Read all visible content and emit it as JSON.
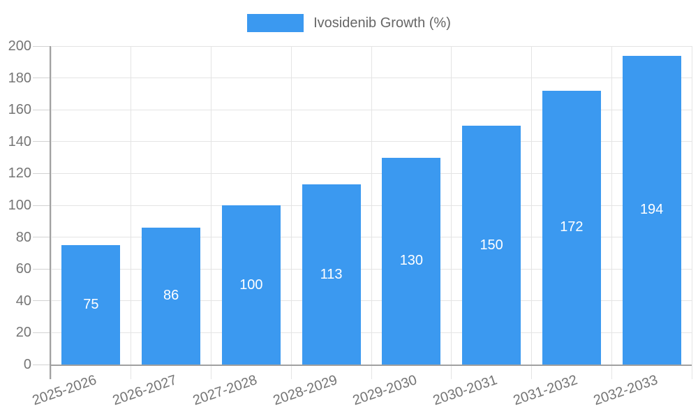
{
  "chart_data": {
    "type": "bar",
    "title": "",
    "series_name": "Ivosidenib Growth (%)",
    "categories": [
      "2025-2026",
      "2026-2027",
      "2027-2028",
      "2028-2029",
      "2029-2030",
      "2030-2031",
      "2031-2032",
      "2032-2033"
    ],
    "values": [
      75,
      86,
      100,
      113,
      130,
      150,
      172,
      194
    ],
    "xlabel": "",
    "ylabel": "",
    "ylim": [
      0,
      200
    ],
    "yticks": [
      0,
      20,
      40,
      60,
      80,
      100,
      120,
      140,
      160,
      180,
      200
    ],
    "grid": true,
    "legend_position": "top-center",
    "value_labels": "inside-center"
  },
  "legend": {
    "label": "Ivosidenib Growth (%)"
  },
  "colors": {
    "background": "#FFFFFF",
    "bar": "#3B99F0",
    "grid": "#E4E4E4",
    "tick": "#D2D2D2",
    "axis_line": "#A0A0A0",
    "axis_text": "#757575",
    "legend_text": "#666666",
    "value_text": "#FFFFFF"
  }
}
